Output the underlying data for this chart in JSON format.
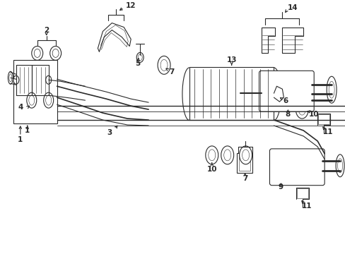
{
  "bg_color": "#ffffff",
  "lc": "#2a2a2a",
  "figsize": [
    4.89,
    3.6
  ],
  "dpi": 100
}
